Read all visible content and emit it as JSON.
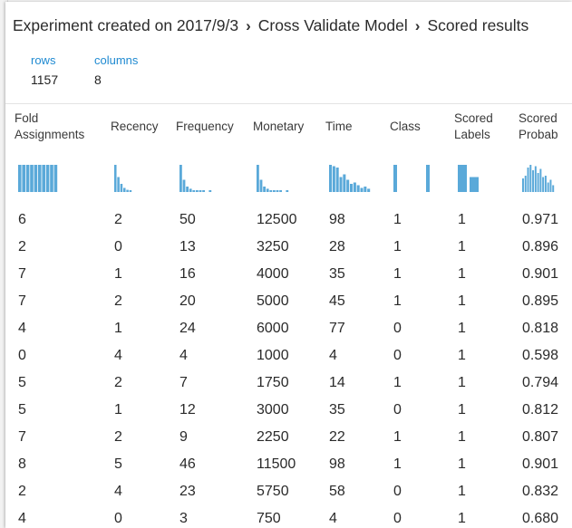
{
  "breadcrumb": {
    "items": [
      "Experiment created on 2017/9/3",
      "Cross Validate Model",
      "Scored results"
    ],
    "separator": "›"
  },
  "stats": {
    "rows_label": "rows",
    "rows_value": "1157",
    "columns_label": "columns",
    "columns_value": "8"
  },
  "columns": [
    {
      "label_lines": [
        "Fold",
        "Assignments"
      ]
    },
    {
      "label_lines": [
        "Recency"
      ]
    },
    {
      "label_lines": [
        "Frequency"
      ]
    },
    {
      "label_lines": [
        "Monetary"
      ]
    },
    {
      "label_lines": [
        "Time"
      ]
    },
    {
      "label_lines": [
        "Class"
      ]
    },
    {
      "label_lines": [
        "Scored",
        "Labels"
      ]
    },
    {
      "label_lines": [
        "Scored",
        "Probab"
      ]
    }
  ],
  "histograms": [
    [
      1,
      1,
      1,
      1,
      1,
      1,
      1,
      1,
      1,
      1
    ],
    [
      1,
      0.55,
      0.3,
      0.15,
      0.08,
      0.05
    ],
    [
      1,
      0.45,
      0.2,
      0.12,
      0.06,
      0.03,
      0.02,
      0.02,
      0,
      0.02
    ],
    [
      1,
      0.45,
      0.2,
      0.12,
      0.06,
      0.03,
      0.02,
      0.02,
      0,
      0.02
    ],
    [
      1,
      0.95,
      0.9,
      0.55,
      0.65,
      0.45,
      0.3,
      0.35,
      0.25,
      0.15,
      0.2,
      0.12
    ],
    [
      1,
      0,
      0,
      0,
      0,
      0,
      0,
      0,
      0,
      1
    ],
    [
      1,
      0.55
    ],
    [
      0.5,
      0.6,
      0.9,
      1,
      0.8,
      0.95,
      0.7,
      0.85,
      0.55,
      0.6,
      0.35,
      0.45,
      0.25
    ]
  ],
  "rows": [
    [
      "6",
      "2",
      "50",
      "12500",
      "98",
      "1",
      "1",
      "0.971"
    ],
    [
      "2",
      "0",
      "13",
      "3250",
      "28",
      "1",
      "1",
      "0.896"
    ],
    [
      "7",
      "1",
      "16",
      "4000",
      "35",
      "1",
      "1",
      "0.901"
    ],
    [
      "7",
      "2",
      "20",
      "5000",
      "45",
      "1",
      "1",
      "0.895"
    ],
    [
      "4",
      "1",
      "24",
      "6000",
      "77",
      "0",
      "1",
      "0.818"
    ],
    [
      "0",
      "4",
      "4",
      "1000",
      "4",
      "0",
      "1",
      "0.598"
    ],
    [
      "5",
      "2",
      "7",
      "1750",
      "14",
      "1",
      "1",
      "0.794"
    ],
    [
      "5",
      "1",
      "12",
      "3000",
      "35",
      "0",
      "1",
      "0.812"
    ],
    [
      "7",
      "2",
      "9",
      "2250",
      "22",
      "1",
      "1",
      "0.807"
    ],
    [
      "8",
      "5",
      "46",
      "11500",
      "98",
      "1",
      "1",
      "0.901"
    ],
    [
      "2",
      "4",
      "23",
      "5750",
      "58",
      "0",
      "1",
      "0.832"
    ],
    [
      "4",
      "0",
      "3",
      "750",
      "4",
      "0",
      "1",
      "0.680"
    ]
  ],
  "colors": {
    "accent": "#1f8ad1",
    "histogram": "#5aa9d9"
  }
}
